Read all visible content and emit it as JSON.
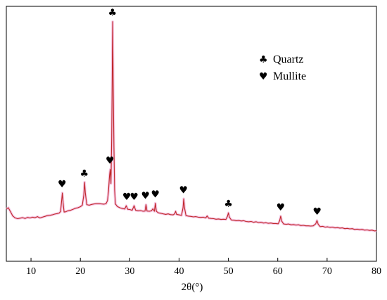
{
  "chart_data": {
    "type": "line",
    "xlabel": "2θ(°)",
    "ylabel": "",
    "title": "",
    "xlim": [
      5,
      80
    ],
    "ylim": [
      0,
      100
    ],
    "xticks": [
      10,
      20,
      30,
      40,
      50,
      60,
      70,
      80
    ],
    "series_color": "#c0282a",
    "halo_color": "#f2b8dc",
    "series": [
      {
        "points": [
          [
            5,
            20.5
          ],
          [
            5.4,
            21.0
          ],
          [
            5.8,
            19.6
          ],
          [
            6.3,
            17.8
          ],
          [
            6.8,
            17.0
          ],
          [
            7.3,
            16.7
          ],
          [
            7.8,
            16.9
          ],
          [
            8.3,
            17.1
          ],
          [
            8.8,
            16.8
          ],
          [
            9.3,
            17.2
          ],
          [
            9.8,
            17.0
          ],
          [
            10.3,
            17.3
          ],
          [
            10.8,
            17.1
          ],
          [
            11.3,
            17.5
          ],
          [
            11.8,
            17.0
          ],
          [
            12.3,
            17.3
          ],
          [
            12.8,
            17.6
          ],
          [
            13.3,
            17.9
          ],
          [
            13.8,
            18.0
          ],
          [
            14.3,
            18.2
          ],
          [
            14.8,
            18.5
          ],
          [
            15.3,
            18.7
          ],
          [
            15.7,
            18.9
          ],
          [
            16.0,
            19.5
          ],
          [
            16.2,
            23.5
          ],
          [
            16.35,
            26.8
          ],
          [
            16.5,
            23.0
          ],
          [
            16.7,
            19.3
          ],
          [
            17.0,
            19.4
          ],
          [
            17.5,
            19.8
          ],
          [
            18.0,
            20.0
          ],
          [
            18.5,
            20.4
          ],
          [
            19.0,
            20.8
          ],
          [
            19.5,
            21.0
          ],
          [
            20.0,
            21.4
          ],
          [
            20.4,
            22.0
          ],
          [
            20.7,
            26.0
          ],
          [
            20.85,
            31.0
          ],
          [
            21.0,
            27.0
          ],
          [
            21.3,
            22.2
          ],
          [
            21.8,
            22.0
          ],
          [
            22.3,
            22.3
          ],
          [
            22.8,
            22.5
          ],
          [
            23.3,
            22.6
          ],
          [
            23.8,
            22.6
          ],
          [
            24.3,
            22.5
          ],
          [
            24.8,
            22.4
          ],
          [
            25.2,
            22.6
          ],
          [
            25.5,
            23.8
          ],
          [
            25.7,
            27.5
          ],
          [
            25.9,
            33.5
          ],
          [
            26.05,
            36.0
          ],
          [
            26.2,
            30.5
          ],
          [
            26.35,
            48.0
          ],
          [
            26.45,
            70.0
          ],
          [
            26.55,
            94.0
          ],
          [
            26.65,
            72.0
          ],
          [
            26.8,
            45.0
          ],
          [
            26.95,
            28.0
          ],
          [
            27.1,
            22.5
          ],
          [
            27.5,
            21.5
          ],
          [
            28.0,
            21.0
          ],
          [
            28.5,
            20.7
          ],
          [
            29.0,
            20.5
          ],
          [
            29.3,
            21.8
          ],
          [
            29.6,
            20.4
          ],
          [
            30.0,
            20.3
          ],
          [
            30.5,
            20.0
          ],
          [
            30.9,
            21.8
          ],
          [
            31.2,
            20.0
          ],
          [
            31.7,
            19.8
          ],
          [
            32.2,
            19.9
          ],
          [
            32.7,
            19.6
          ],
          [
            33.1,
            19.7
          ],
          [
            33.3,
            22.2
          ],
          [
            33.5,
            19.7
          ],
          [
            34.0,
            19.6
          ],
          [
            34.4,
            19.8
          ],
          [
            34.7,
            20.6
          ],
          [
            35.0,
            19.6
          ],
          [
            35.2,
            22.8
          ],
          [
            35.4,
            19.6
          ],
          [
            35.8,
            19.0
          ],
          [
            36.3,
            18.8
          ],
          [
            36.8,
            18.6
          ],
          [
            37.3,
            18.4
          ],
          [
            37.8,
            18.6
          ],
          [
            38.3,
            18.3
          ],
          [
            38.8,
            18.2
          ],
          [
            39.1,
            18.6
          ],
          [
            39.3,
            19.6
          ],
          [
            39.5,
            18.4
          ],
          [
            40.0,
            18.2
          ],
          [
            40.5,
            18.0
          ],
          [
            40.8,
            21.0
          ],
          [
            40.95,
            24.5
          ],
          [
            41.1,
            21.0
          ],
          [
            41.4,
            17.9
          ],
          [
            41.9,
            17.7
          ],
          [
            42.4,
            17.6
          ],
          [
            42.9,
            17.4
          ],
          [
            43.4,
            17.5
          ],
          [
            43.9,
            17.3
          ],
          [
            44.4,
            17.2
          ],
          [
            44.9,
            17.3
          ],
          [
            45.4,
            17.0
          ],
          [
            45.7,
            17.8
          ],
          [
            46.0,
            16.9
          ],
          [
            46.5,
            16.8
          ],
          [
            47.0,
            16.7
          ],
          [
            47.5,
            16.5
          ],
          [
            48.0,
            16.6
          ],
          [
            48.5,
            16.4
          ],
          [
            49.0,
            16.5
          ],
          [
            49.5,
            16.4
          ],
          [
            49.8,
            17.6
          ],
          [
            50.0,
            19.0
          ],
          [
            50.2,
            17.3
          ],
          [
            50.6,
            16.2
          ],
          [
            51.1,
            16.1
          ],
          [
            51.6,
            15.9
          ],
          [
            52.1,
            16.0
          ],
          [
            52.6,
            15.8
          ],
          [
            53.1,
            15.9
          ],
          [
            53.6,
            15.6
          ],
          [
            54.1,
            15.5
          ],
          [
            54.6,
            15.6
          ],
          [
            55.1,
            15.3
          ],
          [
            55.6,
            15.5
          ],
          [
            56.1,
            15.2
          ],
          [
            56.6,
            15.3
          ],
          [
            57.1,
            15.0
          ],
          [
            57.6,
            15.1
          ],
          [
            58.1,
            14.9
          ],
          [
            58.6,
            15.0
          ],
          [
            59.1,
            14.8
          ],
          [
            59.6,
            14.8
          ],
          [
            60.1,
            14.7
          ],
          [
            60.4,
            16.0
          ],
          [
            60.6,
            17.7
          ],
          [
            60.8,
            15.8
          ],
          [
            61.2,
            14.6
          ],
          [
            61.7,
            14.5
          ],
          [
            62.2,
            14.6
          ],
          [
            62.7,
            14.3
          ],
          [
            63.2,
            14.4
          ],
          [
            63.7,
            14.2
          ],
          [
            64.2,
            14.3
          ],
          [
            64.7,
            14.0
          ],
          [
            65.2,
            14.1
          ],
          [
            65.7,
            13.9
          ],
          [
            66.2,
            13.9
          ],
          [
            66.7,
            13.8
          ],
          [
            67.2,
            13.9
          ],
          [
            67.7,
            14.7
          ],
          [
            67.95,
            16.0
          ],
          [
            68.2,
            14.5
          ],
          [
            68.6,
            13.6
          ],
          [
            69.1,
            13.7
          ],
          [
            69.6,
            13.4
          ],
          [
            70.1,
            13.5
          ],
          [
            70.6,
            13.3
          ],
          [
            71.1,
            13.4
          ],
          [
            71.6,
            13.1
          ],
          [
            72.1,
            13.2
          ],
          [
            72.6,
            13.0
          ],
          [
            73.1,
            13.1
          ],
          [
            73.6,
            12.8
          ],
          [
            74.1,
            12.9
          ],
          [
            74.6,
            12.7
          ],
          [
            75.1,
            12.8
          ],
          [
            75.6,
            12.5
          ],
          [
            76.1,
            12.6
          ],
          [
            76.6,
            12.4
          ],
          [
            77.1,
            12.5
          ],
          [
            77.6,
            12.2
          ],
          [
            78.1,
            12.3
          ],
          [
            78.6,
            12.1
          ],
          [
            79.1,
            12.2
          ],
          [
            79.6,
            11.9
          ],
          [
            80,
            12.0
          ]
        ]
      }
    ],
    "markers": [
      {
        "x": 16.3,
        "y": 26.8,
        "symbol": "♥"
      },
      {
        "x": 20.8,
        "y": 31.0,
        "symbol": "♣"
      },
      {
        "x": 26.5,
        "y": 94.0,
        "symbol": "♣"
      },
      {
        "x": 26.0,
        "y": 36.0,
        "symbol": "♥"
      },
      {
        "x": 29.4,
        "y": 21.8,
        "symbol": "♥"
      },
      {
        "x": 30.9,
        "y": 21.8,
        "symbol": "♥"
      },
      {
        "x": 33.2,
        "y": 22.2,
        "symbol": "♥"
      },
      {
        "x": 35.2,
        "y": 22.8,
        "symbol": "♥"
      },
      {
        "x": 40.9,
        "y": 24.5,
        "symbol": "♥"
      },
      {
        "x": 50.0,
        "y": 19.0,
        "symbol": "♣"
      },
      {
        "x": 60.6,
        "y": 17.7,
        "symbol": "♥"
      },
      {
        "x": 68.0,
        "y": 16.0,
        "symbol": "♥"
      }
    ],
    "legend": {
      "placement": "top-right",
      "entries": [
        {
          "symbol": "♣",
          "label": "Quartz"
        },
        {
          "symbol": "♥",
          "label": "Mullite"
        }
      ]
    }
  }
}
